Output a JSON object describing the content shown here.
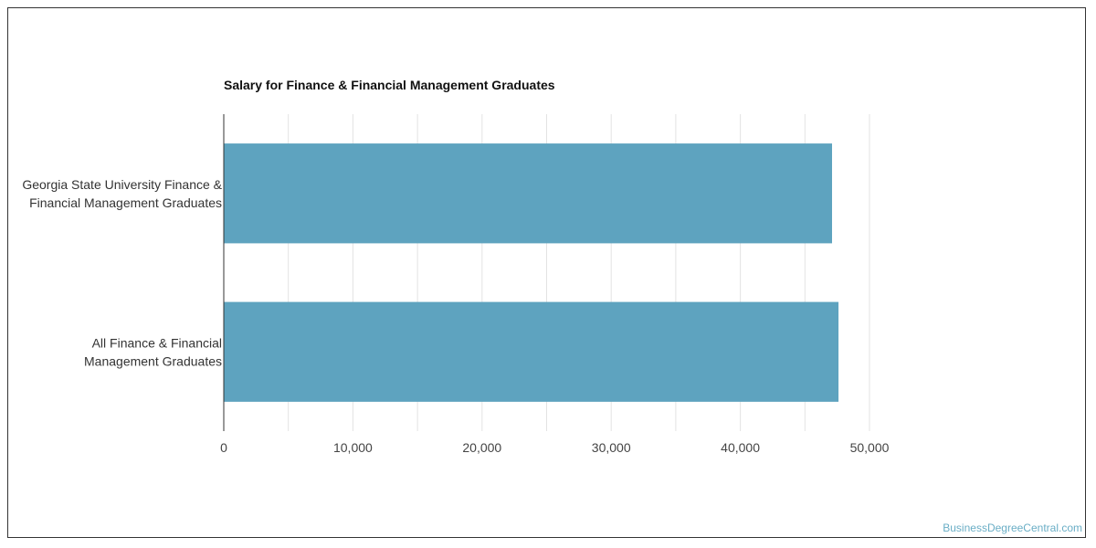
{
  "chart_data": {
    "type": "bar",
    "orientation": "horizontal",
    "title": "Salary for Finance & Financial Management Graduates",
    "categories": [
      [
        "Georgia State University Finance &",
        "Financial Management Graduates"
      ],
      [
        "All Finance & Financial",
        "Management Graduates"
      ]
    ],
    "values": [
      47100,
      47600
    ],
    "xlim": [
      0,
      50000
    ],
    "xticks": [
      0,
      10000,
      20000,
      30000,
      40000,
      50000
    ],
    "xtick_labels": [
      "0",
      "10,000",
      "20,000",
      "30,000",
      "40,000",
      "50,000"
    ],
    "grid": true,
    "bar_color": "#5ea3bf",
    "xlabel": "",
    "ylabel": ""
  },
  "watermark": "BusinessDegreeCentral.com"
}
